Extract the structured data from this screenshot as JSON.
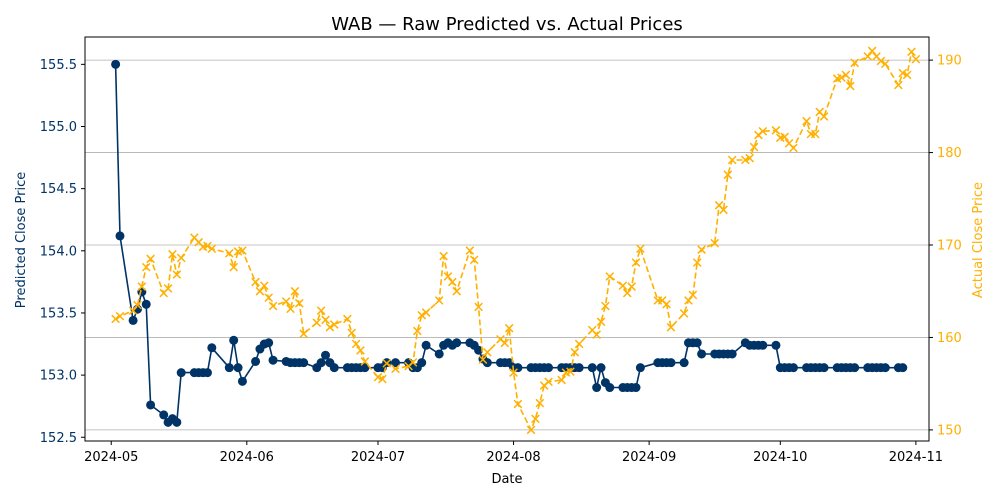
{
  "chart_data": {
    "type": "line",
    "title": "WAB — Raw Predicted vs. Actual Prices",
    "xlabel": "Date",
    "ylabel_left": "Predicted Close Price",
    "ylabel_right": "Actual Close Price",
    "xlim": [
      "2024-04-25",
      "2024-11-04"
    ],
    "ylim_left": [
      152.47,
      155.72
    ],
    "ylim_right": [
      148.8,
      192.5
    ],
    "x_ticks": [
      "2024-05",
      "2024-06",
      "2024-07",
      "2024-08",
      "2024-09",
      "2024-10",
      "2024-11"
    ],
    "y_ticks_left": [
      "152.5",
      "153.0",
      "153.5",
      "154.0",
      "154.5",
      "155.0",
      "155.5"
    ],
    "y_ticks_right": [
      "150",
      "160",
      "170",
      "180",
      "190"
    ],
    "grid": "horizontal lines at right-axis ticks",
    "colors": {
      "predicted": "#003366",
      "actual": "#ffb000",
      "left_axis_text": "#003366",
      "right_axis_text": "#ffb000"
    },
    "series": [
      {
        "axis": "left",
        "marker": "circle",
        "line": "solid",
        "points": [
          [
            "2024-05-02",
            155.5
          ],
          [
            "2024-05-03",
            154.12
          ],
          [
            "2024-05-06",
            153.44
          ],
          [
            "2024-05-07",
            153.53
          ],
          [
            "2024-05-08",
            153.67
          ],
          [
            "2024-05-09",
            153.57
          ],
          [
            "2024-05-10",
            152.76
          ],
          [
            "2024-05-13",
            152.68
          ],
          [
            "2024-05-14",
            152.62
          ],
          [
            "2024-05-15",
            152.65
          ],
          [
            "2024-05-16",
            152.62
          ],
          [
            "2024-05-17",
            153.02
          ],
          [
            "2024-05-20",
            153.02
          ],
          [
            "2024-05-21",
            153.02
          ],
          [
            "2024-05-22",
            153.02
          ],
          [
            "2024-05-23",
            153.02
          ],
          [
            "2024-05-24",
            153.22
          ],
          [
            "2024-05-28",
            153.06
          ],
          [
            "2024-05-29",
            153.28
          ],
          [
            "2024-05-30",
            153.06
          ],
          [
            "2024-05-31",
            152.95
          ],
          [
            "2024-06-03",
            153.11
          ],
          [
            "2024-06-04",
            153.21
          ],
          [
            "2024-06-05",
            153.25
          ],
          [
            "2024-06-06",
            153.26
          ],
          [
            "2024-06-07",
            153.12
          ],
          [
            "2024-06-10",
            153.11
          ],
          [
            "2024-06-11",
            153.1
          ],
          [
            "2024-06-12",
            153.1
          ],
          [
            "2024-06-13",
            153.1
          ],
          [
            "2024-06-14",
            153.1
          ],
          [
            "2024-06-17",
            153.06
          ],
          [
            "2024-06-18",
            153.1
          ],
          [
            "2024-06-19",
            153.16
          ],
          [
            "2024-06-20",
            153.1
          ],
          [
            "2024-06-21",
            153.06
          ],
          [
            "2024-06-24",
            153.06
          ],
          [
            "2024-06-25",
            153.06
          ],
          [
            "2024-06-26",
            153.06
          ],
          [
            "2024-06-27",
            153.06
          ],
          [
            "2024-06-28",
            153.06
          ],
          [
            "2024-07-01",
            153.06
          ],
          [
            "2024-07-02",
            153.06
          ],
          [
            "2024-07-03",
            153.1
          ],
          [
            "2024-07-05",
            153.1
          ],
          [
            "2024-07-08",
            153.1
          ],
          [
            "2024-07-09",
            153.06
          ],
          [
            "2024-07-10",
            153.06
          ],
          [
            "2024-07-11",
            153.1
          ],
          [
            "2024-07-12",
            153.24
          ],
          [
            "2024-07-15",
            153.17
          ],
          [
            "2024-07-16",
            153.24
          ],
          [
            "2024-07-17",
            153.26
          ],
          [
            "2024-07-18",
            153.24
          ],
          [
            "2024-07-19",
            153.26
          ],
          [
            "2024-07-22",
            153.26
          ],
          [
            "2024-07-23",
            153.24
          ],
          [
            "2024-07-24",
            153.2
          ],
          [
            "2024-07-25",
            153.13
          ],
          [
            "2024-07-26",
            153.1
          ],
          [
            "2024-07-29",
            153.1
          ],
          [
            "2024-07-30",
            153.1
          ],
          [
            "2024-07-31",
            153.1
          ],
          [
            "2024-08-01",
            153.06
          ],
          [
            "2024-08-02",
            153.06
          ],
          [
            "2024-08-05",
            153.06
          ],
          [
            "2024-08-06",
            153.06
          ],
          [
            "2024-08-07",
            153.06
          ],
          [
            "2024-08-08",
            153.06
          ],
          [
            "2024-08-09",
            153.06
          ],
          [
            "2024-08-12",
            153.06
          ],
          [
            "2024-08-13",
            153.06
          ],
          [
            "2024-08-14",
            153.06
          ],
          [
            "2024-08-15",
            153.06
          ],
          [
            "2024-08-16",
            153.06
          ],
          [
            "2024-08-19",
            153.06
          ],
          [
            "2024-08-20",
            152.9
          ],
          [
            "2024-08-21",
            153.06
          ],
          [
            "2024-08-22",
            152.94
          ],
          [
            "2024-08-23",
            152.9
          ],
          [
            "2024-08-26",
            152.9
          ],
          [
            "2024-08-27",
            152.9
          ],
          [
            "2024-08-28",
            152.9
          ],
          [
            "2024-08-29",
            152.9
          ],
          [
            "2024-08-30",
            153.06
          ],
          [
            "2024-09-03",
            153.1
          ],
          [
            "2024-09-04",
            153.1
          ],
          [
            "2024-09-05",
            153.1
          ],
          [
            "2024-09-06",
            153.1
          ],
          [
            "2024-09-09",
            153.1
          ],
          [
            "2024-09-10",
            153.26
          ],
          [
            "2024-09-11",
            153.26
          ],
          [
            "2024-09-12",
            153.26
          ],
          [
            "2024-09-13",
            153.17
          ],
          [
            "2024-09-16",
            153.17
          ],
          [
            "2024-09-17",
            153.17
          ],
          [
            "2024-09-18",
            153.17
          ],
          [
            "2024-09-19",
            153.17
          ],
          [
            "2024-09-20",
            153.17
          ],
          [
            "2024-09-23",
            153.26
          ],
          [
            "2024-09-24",
            153.24
          ],
          [
            "2024-09-25",
            153.24
          ],
          [
            "2024-09-26",
            153.24
          ],
          [
            "2024-09-27",
            153.24
          ],
          [
            "2024-09-30",
            153.24
          ],
          [
            "2024-10-01",
            153.06
          ],
          [
            "2024-10-02",
            153.06
          ],
          [
            "2024-10-03",
            153.06
          ],
          [
            "2024-10-04",
            153.06
          ],
          [
            "2024-10-07",
            153.06
          ],
          [
            "2024-10-08",
            153.06
          ],
          [
            "2024-10-09",
            153.06
          ],
          [
            "2024-10-10",
            153.06
          ],
          [
            "2024-10-11",
            153.06
          ],
          [
            "2024-10-14",
            153.06
          ],
          [
            "2024-10-15",
            153.06
          ],
          [
            "2024-10-16",
            153.06
          ],
          [
            "2024-10-17",
            153.06
          ],
          [
            "2024-10-18",
            153.06
          ],
          [
            "2024-10-21",
            153.06
          ],
          [
            "2024-10-22",
            153.06
          ],
          [
            "2024-10-23",
            153.06
          ],
          [
            "2024-10-24",
            153.06
          ],
          [
            "2024-10-25",
            153.06
          ],
          [
            "2024-10-28",
            153.06
          ],
          [
            "2024-10-29",
            153.06
          ]
        ]
      },
      {
        "axis": "right",
        "marker": "x",
        "line": "dashed",
        "points": [
          [
            "2024-05-02",
            162.0
          ],
          [
            "2024-05-03",
            162.3
          ],
          [
            "2024-05-06",
            162.9
          ],
          [
            "2024-05-07",
            163.5
          ],
          [
            "2024-05-08",
            165.5
          ],
          [
            "2024-05-09",
            167.6
          ],
          [
            "2024-05-10",
            168.5
          ],
          [
            "2024-05-13",
            164.8
          ],
          [
            "2024-05-14",
            165.3
          ],
          [
            "2024-05-15",
            169.0
          ],
          [
            "2024-05-16",
            166.8
          ],
          [
            "2024-05-17",
            168.6
          ],
          [
            "2024-05-20",
            170.8
          ],
          [
            "2024-05-21",
            170.3
          ],
          [
            "2024-05-22",
            169.8
          ],
          [
            "2024-05-23",
            169.9
          ],
          [
            "2024-05-24",
            169.6
          ],
          [
            "2024-05-28",
            169.1
          ],
          [
            "2024-05-29",
            167.6
          ],
          [
            "2024-05-30",
            169.3
          ],
          [
            "2024-05-31",
            169.4
          ],
          [
            "2024-06-03",
            166.0
          ],
          [
            "2024-06-04",
            165.0
          ],
          [
            "2024-06-05",
            165.6
          ],
          [
            "2024-06-06",
            164.3
          ],
          [
            "2024-06-07",
            163.4
          ],
          [
            "2024-06-10",
            163.9
          ],
          [
            "2024-06-11",
            163.1
          ],
          [
            "2024-06-12",
            165.0
          ],
          [
            "2024-06-13",
            163.7
          ],
          [
            "2024-06-14",
            160.4
          ],
          [
            "2024-06-17",
            161.6
          ],
          [
            "2024-06-18",
            162.9
          ],
          [
            "2024-06-19",
            161.9
          ],
          [
            "2024-06-20",
            161.1
          ],
          [
            "2024-06-21",
            161.4
          ],
          [
            "2024-06-24",
            162.0
          ],
          [
            "2024-06-25",
            160.5
          ],
          [
            "2024-06-26",
            159.3
          ],
          [
            "2024-06-27",
            158.6
          ],
          [
            "2024-06-28",
            157.4
          ],
          [
            "2024-07-01",
            155.7
          ],
          [
            "2024-07-02",
            155.5
          ],
          [
            "2024-07-03",
            157.2
          ],
          [
            "2024-07-05",
            156.6
          ],
          [
            "2024-07-08",
            156.9
          ],
          [
            "2024-07-09",
            157.3
          ],
          [
            "2024-07-10",
            160.7
          ],
          [
            "2024-07-11",
            162.4
          ],
          [
            "2024-07-12",
            162.7
          ],
          [
            "2024-07-15",
            164.0
          ],
          [
            "2024-07-16",
            168.8
          ],
          [
            "2024-07-17",
            166.6
          ],
          [
            "2024-07-18",
            166.0
          ],
          [
            "2024-07-19",
            165.0
          ],
          [
            "2024-07-22",
            169.4
          ],
          [
            "2024-07-23",
            168.4
          ],
          [
            "2024-07-24",
            163.3
          ],
          [
            "2024-07-25",
            157.6
          ],
          [
            "2024-07-26",
            158.4
          ],
          [
            "2024-07-29",
            159.8
          ],
          [
            "2024-07-30",
            159.4
          ],
          [
            "2024-07-31",
            161.0
          ],
          [
            "2024-08-01",
            156.2
          ],
          [
            "2024-08-02",
            152.8
          ],
          [
            "2024-08-05",
            150.0
          ],
          [
            "2024-08-06",
            151.2
          ],
          [
            "2024-08-07",
            152.9
          ],
          [
            "2024-08-08",
            154.8
          ],
          [
            "2024-08-09",
            155.2
          ],
          [
            "2024-08-12",
            155.4
          ],
          [
            "2024-08-13",
            156.2
          ],
          [
            "2024-08-14",
            156.3
          ],
          [
            "2024-08-15",
            158.4
          ],
          [
            "2024-08-16",
            159.3
          ],
          [
            "2024-08-19",
            160.8
          ],
          [
            "2024-08-20",
            160.3
          ],
          [
            "2024-08-21",
            161.7
          ],
          [
            "2024-08-22",
            163.4
          ],
          [
            "2024-08-23",
            166.6
          ],
          [
            "2024-08-26",
            165.6
          ],
          [
            "2024-08-27",
            164.8
          ],
          [
            "2024-08-28",
            165.5
          ],
          [
            "2024-08-29",
            168.1
          ],
          [
            "2024-08-30",
            169.6
          ],
          [
            "2024-09-03",
            164.0
          ],
          [
            "2024-09-04",
            164.0
          ],
          [
            "2024-09-05",
            163.6
          ],
          [
            "2024-09-06",
            161.1
          ],
          [
            "2024-09-09",
            162.6
          ],
          [
            "2024-09-10",
            164.0
          ],
          [
            "2024-09-11",
            164.6
          ],
          [
            "2024-09-12",
            168.1
          ],
          [
            "2024-09-13",
            169.5
          ],
          [
            "2024-09-16",
            170.2
          ],
          [
            "2024-09-17",
            174.3
          ],
          [
            "2024-09-18",
            173.8
          ],
          [
            "2024-09-19",
            177.6
          ],
          [
            "2024-09-20",
            179.2
          ],
          [
            "2024-09-23",
            179.2
          ],
          [
            "2024-09-24",
            179.4
          ],
          [
            "2024-09-25",
            180.6
          ],
          [
            "2024-09-26",
            181.9
          ],
          [
            "2024-09-27",
            182.3
          ],
          [
            "2024-09-30",
            182.4
          ],
          [
            "2024-10-01",
            181.6
          ],
          [
            "2024-10-02",
            181.7
          ],
          [
            "2024-10-03",
            181.0
          ],
          [
            "2024-10-04",
            180.5
          ],
          [
            "2024-10-07",
            183.4
          ],
          [
            "2024-10-08",
            182.0
          ],
          [
            "2024-10-09",
            182.0
          ],
          [
            "2024-10-10",
            184.4
          ],
          [
            "2024-10-11",
            183.9
          ],
          [
            "2024-10-14",
            188.0
          ],
          [
            "2024-10-15",
            188.1
          ],
          [
            "2024-10-16",
            188.4
          ],
          [
            "2024-10-17",
            187.2
          ],
          [
            "2024-10-18",
            189.7
          ],
          [
            "2024-10-21",
            190.4
          ],
          [
            "2024-10-22",
            191.0
          ],
          [
            "2024-10-23",
            190.4
          ],
          [
            "2024-10-24",
            189.9
          ],
          [
            "2024-10-25",
            189.6
          ],
          [
            "2024-10-28",
            187.3
          ],
          [
            "2024-10-29",
            188.6
          ],
          [
            "2024-10-30",
            188.4
          ],
          [
            "2024-10-31",
            190.9
          ],
          [
            "2024-11-01",
            190.1
          ]
        ]
      }
    ]
  }
}
